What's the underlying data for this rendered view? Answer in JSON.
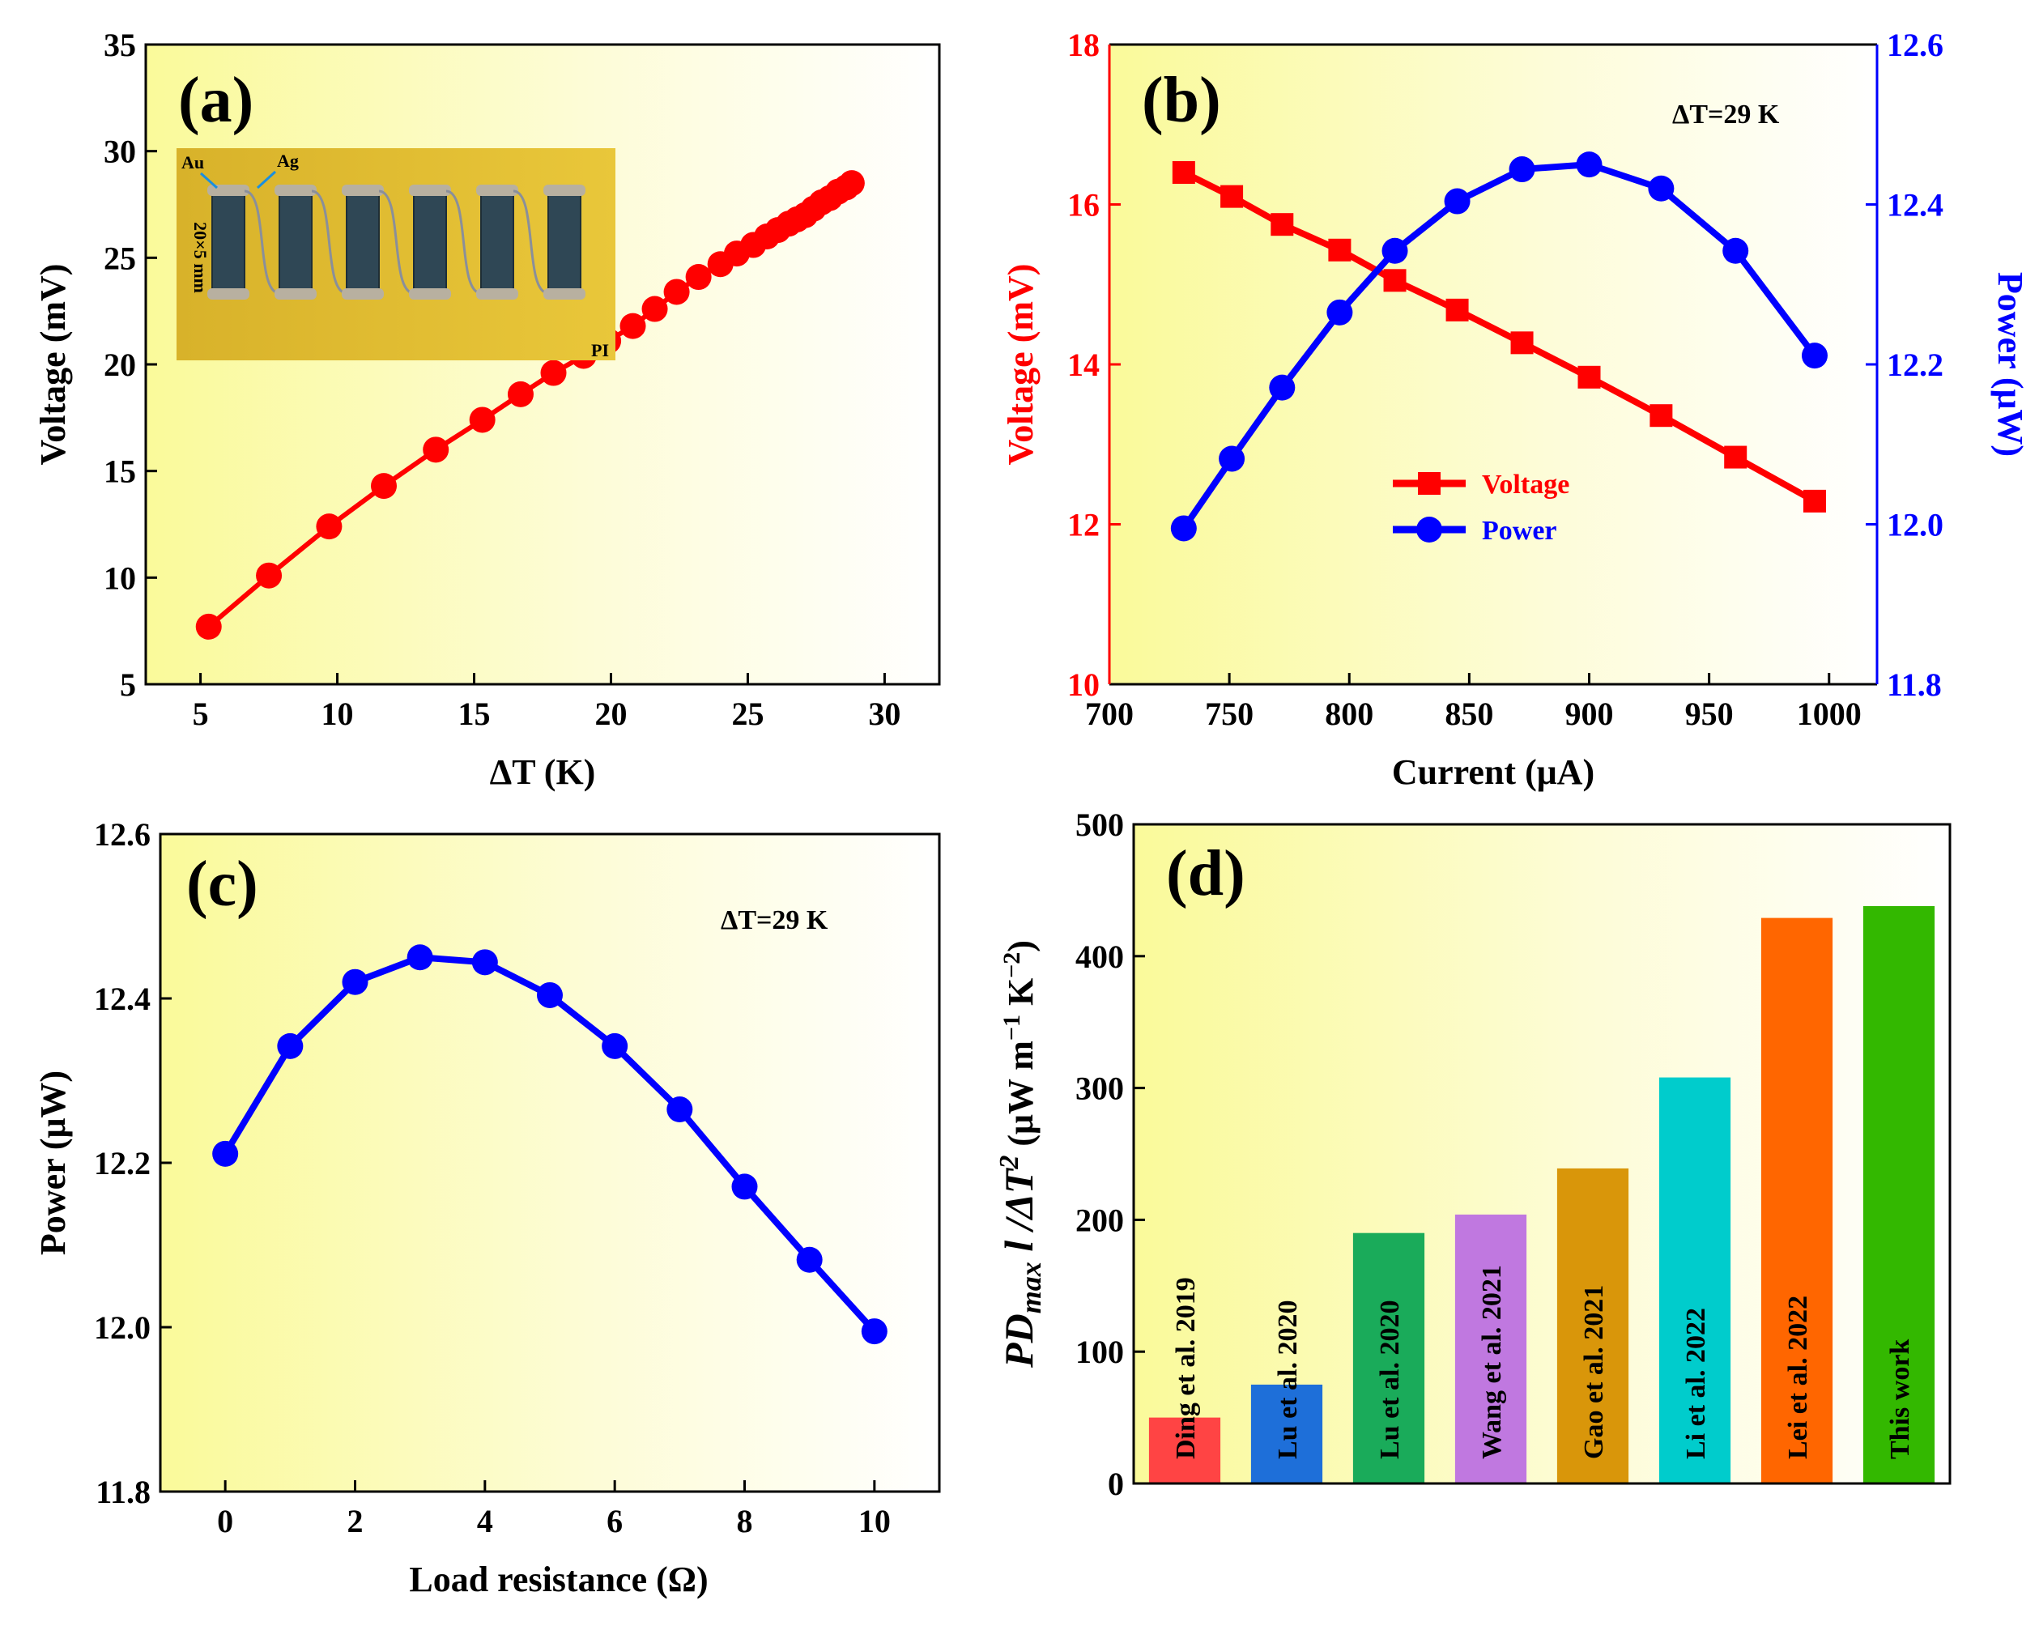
{
  "chart_data": [
    {
      "id": "a",
      "type": "scatter",
      "panel_label": "(a)",
      "xlabel": "ΔT (K)",
      "ylabel": "Voltage (mV)",
      "xlim": [
        3,
        32
      ],
      "ylim": [
        5,
        35
      ],
      "xticks": [
        5,
        10,
        15,
        20,
        25,
        30
      ],
      "yticks": [
        5,
        10,
        15,
        20,
        25,
        30,
        35
      ],
      "color": "#ff0000",
      "x": [
        5.3,
        7.5,
        9.7,
        11.7,
        13.6,
        15.3,
        16.7,
        17.9,
        19.0,
        19.9,
        20.8,
        21.6,
        22.4,
        23.2,
        24.0,
        24.6,
        25.2,
        25.7,
        26.1,
        26.5,
        26.8,
        27.1,
        27.4,
        27.7,
        28.0,
        28.3,
        28.6,
        28.8
      ],
      "y": [
        7.7,
        10.1,
        12.4,
        14.3,
        16.0,
        17.4,
        18.6,
        19.6,
        20.4,
        21.1,
        21.8,
        22.6,
        23.4,
        24.1,
        24.7,
        25.2,
        25.6,
        26.0,
        26.3,
        26.6,
        26.8,
        27.0,
        27.3,
        27.6,
        27.8,
        28.1,
        28.3,
        28.5
      ],
      "inset": {
        "label_au": "Au",
        "label_ag": "Ag",
        "label_size": "20×5 mm",
        "label_pi": "PI"
      }
    },
    {
      "id": "b",
      "type": "line",
      "panel_label": "(b)",
      "annotation": "ΔT=29 K",
      "xlabel": "Current (μA)",
      "ylabel_left": "Voltage (mV)",
      "ylabel_right": "Power (μW)",
      "xlim": [
        700,
        1020
      ],
      "ylim_left": [
        10,
        18
      ],
      "ylim_right": [
        11.8,
        12.6
      ],
      "xticks": [
        700,
        750,
        800,
        850,
        900,
        950,
        1000
      ],
      "yticks_left": [
        10,
        12,
        14,
        16,
        18
      ],
      "yticks_right": [
        "11.8",
        "12.0",
        "12.2",
        "12.4",
        "12.6"
      ],
      "x": [
        731,
        751,
        772,
        796,
        819,
        845,
        872,
        900,
        930,
        961,
        994
      ],
      "series": [
        {
          "name": "Voltage",
          "axis": "left",
          "marker": "square",
          "color": "#ff0000",
          "values": [
            16.4,
            16.1,
            15.75,
            15.43,
            15.05,
            14.68,
            14.27,
            13.84,
            13.36,
            12.84,
            12.29
          ]
        },
        {
          "name": "Power",
          "axis": "right",
          "marker": "circle",
          "color": "#0000ff",
          "values": [
            11.995,
            12.082,
            12.171,
            12.265,
            12.342,
            12.404,
            12.444,
            12.45,
            12.42,
            12.342,
            12.211
          ]
        }
      ]
    },
    {
      "id": "c",
      "type": "line",
      "panel_label": "(c)",
      "annotation": "ΔT=29 K",
      "xlabel": "Load resistance (Ω)",
      "ylabel": "Power (μW)",
      "xlim": [
        -1,
        11
      ],
      "ylim": [
        11.8,
        12.6
      ],
      "xticks": [
        0,
        2,
        4,
        6,
        8,
        10
      ],
      "yticks": [
        "11.8",
        "12.0",
        "12.2",
        "12.4",
        "12.6"
      ],
      "color": "#0000ff",
      "x": [
        0,
        1,
        2,
        3,
        4,
        5,
        6,
        7,
        8,
        9,
        10
      ],
      "y": [
        12.211,
        12.342,
        12.42,
        12.45,
        12.444,
        12.404,
        12.342,
        12.265,
        12.171,
        12.082,
        11.995
      ]
    },
    {
      "id": "d",
      "type": "bar",
      "panel_label": "(d)",
      "ylabel": "PDmax l /ΔT2 (μW m−1 K−2)",
      "ylabel_parts": {
        "pd": "PD",
        "max": "max",
        "mid": " l /ΔT",
        "sq": "2",
        "unit_open": " (μW m",
        "m_exp": "−1",
        "k": " K",
        "k_exp": "−2",
        "unit_close": ")"
      },
      "ylim": [
        0,
        500
      ],
      "yticks": [
        0,
        100,
        200,
        300,
        400,
        500
      ],
      "categories": [
        "Ding et al. 2019",
        "Lu et al. 2020",
        "Lu et al. 2020",
        "Wang et al. 2021",
        "Gao et al. 2021",
        "Li et al. 2022",
        "Lei et al. 2022",
        "This work"
      ],
      "values": [
        50,
        75,
        190,
        204,
        239,
        308,
        429,
        438
      ],
      "colors": [
        "#ff4444",
        "#1e6fd9",
        "#1aab5a",
        "#c078e0",
        "#d9960a",
        "#00cccc",
        "#ff6600",
        "#33b800"
      ]
    }
  ]
}
